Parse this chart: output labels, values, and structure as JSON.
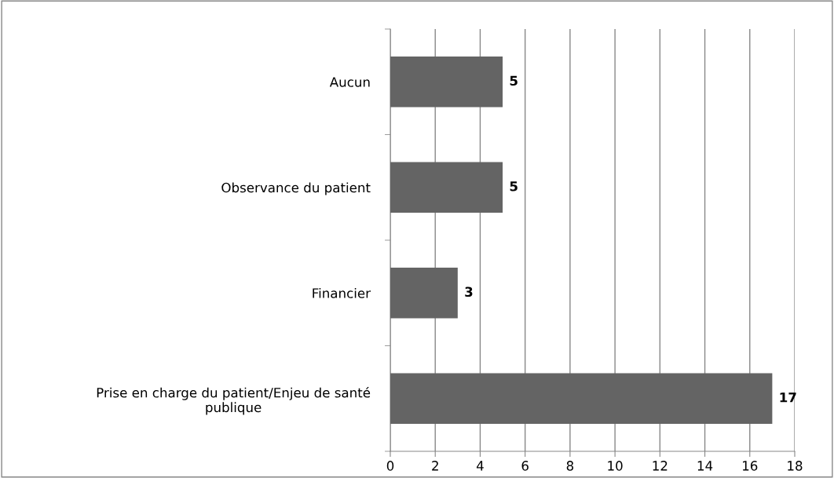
{
  "chart_data": {
    "type": "bar",
    "orientation": "horizontal",
    "categories": [
      "Aucun",
      "Observance du patient",
      "Financier",
      "Prise en charge du patient/Enjeu de santé\npublique"
    ],
    "values": [
      5,
      5,
      3,
      17
    ],
    "color": "#646464",
    "xlim": [
      0,
      18
    ],
    "xticks": [
      0,
      2,
      4,
      6,
      8,
      10,
      12,
      14,
      16,
      18
    ],
    "grid": "x",
    "data_labels": true,
    "legend": false
  }
}
